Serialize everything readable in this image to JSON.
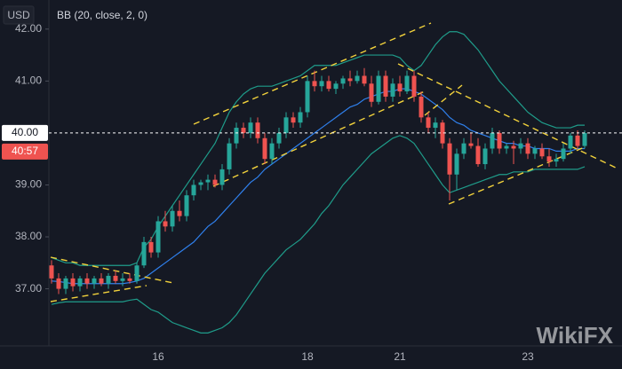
{
  "chart_data": {
    "type": "candlestick",
    "currency": "USD",
    "indicator": "BB (20, close, 2, 0)",
    "categories": [
      null,
      null,
      null,
      null,
      null,
      null,
      null,
      null,
      null,
      null,
      null,
      null,
      null,
      null,
      null,
      "16",
      null,
      null,
      null,
      null,
      null,
      null,
      null,
      null,
      null,
      null,
      null,
      null,
      null,
      null,
      null,
      null,
      null,
      null,
      null,
      null,
      "18",
      null,
      null,
      null,
      null,
      null,
      null,
      null,
      null,
      null,
      null,
      null,
      null,
      "21",
      null,
      null,
      null,
      null,
      null,
      null,
      null,
      null,
      null,
      null,
      null,
      null,
      null,
      null,
      null,
      null,
      null,
      "23",
      null,
      null,
      null,
      null,
      null,
      null,
      null,
      null
    ],
    "open": [
      37.45,
      37.2,
      37.0,
      37.2,
      37.05,
      37.2,
      37.1,
      37.2,
      37.1,
      37.25,
      37.15,
      37.2,
      37.15,
      37.45,
      37.9,
      37.7,
      38.3,
      38.2,
      38.5,
      38.4,
      38.8,
      39.0,
      39.05,
      39.1,
      39.0,
      39.3,
      39.8,
      40.1,
      40.0,
      40.2,
      39.9,
      39.5,
      39.8,
      40.0,
      40.3,
      40.2,
      40.4,
      41.0,
      40.9,
      41.0,
      40.85,
      40.95,
      41.05,
      41.0,
      41.1,
      40.95,
      40.6,
      41.1,
      40.7,
      40.95,
      40.8,
      41.1,
      40.7,
      40.3,
      40.1,
      40.2,
      39.8,
      39.2,
      39.6,
      39.8,
      39.75,
      39.4,
      39.7,
      40.0,
      39.7,
      39.75,
      39.7,
      39.8,
      39.6,
      39.7,
      39.55,
      39.45,
      39.5,
      39.7,
      39.95,
      39.75
    ],
    "high": [
      37.55,
      37.3,
      37.25,
      37.3,
      37.25,
      37.3,
      37.25,
      37.3,
      37.3,
      37.35,
      37.3,
      37.3,
      37.5,
      38.0,
      38.0,
      38.4,
      38.5,
      38.6,
      38.7,
      38.9,
      39.1,
      39.1,
      39.2,
      39.2,
      39.4,
      39.9,
      40.2,
      40.2,
      40.3,
      40.3,
      40.0,
      39.9,
      40.1,
      40.4,
      40.4,
      40.5,
      41.1,
      41.2,
      41.1,
      41.1,
      41.0,
      41.1,
      41.2,
      41.2,
      41.25,
      41.1,
      41.2,
      41.2,
      41.05,
      41.1,
      41.2,
      41.2,
      40.8,
      40.4,
      40.3,
      40.25,
      39.9,
      39.7,
      39.9,
      40.0,
      39.9,
      39.8,
      40.1,
      40.05,
      39.8,
      39.85,
      39.9,
      39.9,
      39.75,
      39.8,
      39.7,
      39.6,
      39.8,
      40.0,
      40.05,
      40.05
    ],
    "low": [
      37.1,
      36.9,
      36.9,
      36.95,
      36.95,
      37.0,
      37.0,
      37.05,
      37.0,
      37.1,
      37.05,
      37.1,
      37.1,
      37.4,
      37.6,
      37.6,
      38.1,
      38.1,
      38.3,
      38.3,
      38.7,
      38.9,
      38.9,
      38.95,
      38.9,
      39.2,
      39.7,
      39.9,
      39.9,
      39.8,
      39.4,
      39.4,
      39.7,
      39.9,
      40.1,
      40.1,
      40.3,
      40.8,
      40.8,
      40.8,
      40.75,
      40.85,
      40.9,
      40.95,
      40.9,
      40.5,
      40.55,
      40.6,
      40.6,
      40.7,
      40.75,
      40.6,
      40.2,
      40.0,
      39.9,
      39.7,
      38.7,
      38.9,
      39.5,
      39.7,
      39.35,
      39.3,
      39.6,
      39.6,
      39.6,
      39.4,
      39.6,
      39.5,
      39.5,
      39.5,
      39.35,
      39.35,
      39.45,
      39.6,
      39.7,
      39.7
    ],
    "close": [
      37.2,
      37.0,
      37.2,
      37.05,
      37.2,
      37.1,
      37.2,
      37.1,
      37.25,
      37.15,
      37.2,
      37.15,
      37.45,
      37.9,
      37.7,
      38.3,
      38.2,
      38.5,
      38.4,
      38.8,
      39.0,
      39.05,
      39.1,
      39.0,
      39.3,
      39.8,
      40.1,
      40.0,
      40.2,
      39.9,
      39.5,
      39.8,
      40.0,
      40.3,
      40.2,
      40.4,
      41.0,
      40.9,
      41.0,
      40.85,
      40.95,
      41.05,
      41.0,
      41.1,
      40.95,
      40.6,
      41.1,
      40.7,
      40.95,
      40.8,
      41.1,
      40.7,
      40.3,
      40.1,
      40.2,
      39.8,
      39.2,
      39.6,
      39.8,
      39.75,
      39.4,
      39.7,
      40.0,
      39.7,
      39.75,
      39.7,
      39.8,
      39.6,
      39.7,
      39.55,
      39.45,
      39.5,
      39.7,
      39.95,
      39.75,
      40.0
    ],
    "up_color": "#26a69a",
    "down_color": "#ef5350",
    "bands": {
      "upper": {
        "color": "#1f9c8a",
        "values": [
          37.6,
          37.55,
          37.5,
          37.5,
          37.45,
          37.45,
          37.45,
          37.45,
          37.45,
          37.45,
          37.45,
          37.45,
          37.5,
          37.8,
          37.95,
          38.2,
          38.4,
          38.6,
          38.8,
          39.0,
          39.2,
          39.4,
          39.6,
          39.8,
          40.1,
          40.4,
          40.6,
          40.75,
          40.85,
          40.9,
          40.9,
          40.9,
          40.95,
          41.0,
          41.05,
          41.1,
          41.2,
          41.3,
          41.3,
          41.3,
          41.3,
          41.35,
          41.4,
          41.45,
          41.5,
          41.5,
          41.5,
          41.5,
          41.5,
          41.45,
          41.3,
          41.2,
          41.3,
          41.5,
          41.7,
          41.85,
          41.95,
          41.95,
          41.9,
          41.75,
          41.6,
          41.4,
          41.2,
          41.0,
          40.85,
          40.7,
          40.55,
          40.4,
          40.3,
          40.2,
          40.15,
          40.1,
          40.1,
          40.1,
          40.15,
          40.15
        ]
      },
      "basis": {
        "color": "#2f80ed",
        "values": [
          37.15,
          37.14,
          37.12,
          37.1,
          37.1,
          37.1,
          37.1,
          37.1,
          37.1,
          37.1,
          37.1,
          37.12,
          37.15,
          37.2,
          37.3,
          37.4,
          37.5,
          37.6,
          37.7,
          37.8,
          37.9,
          38.05,
          38.2,
          38.3,
          38.45,
          38.6,
          38.75,
          38.9,
          39.05,
          39.15,
          39.3,
          39.4,
          39.5,
          39.6,
          39.7,
          39.8,
          39.9,
          40.0,
          40.1,
          40.2,
          40.3,
          40.4,
          40.5,
          40.55,
          40.65,
          40.7,
          40.75,
          40.8,
          40.8,
          40.85,
          40.85,
          40.8,
          40.75,
          40.65,
          40.55,
          40.45,
          40.3,
          40.2,
          40.15,
          40.05,
          40.0,
          39.95,
          39.9,
          39.85,
          39.8,
          39.8,
          39.75,
          39.75,
          39.7,
          39.7,
          39.7,
          39.65,
          39.65,
          39.65,
          39.7,
          39.7
        ]
      },
      "lower": {
        "color": "#1f9c8a",
        "values": [
          36.7,
          36.73,
          36.75,
          36.75,
          36.75,
          36.75,
          36.75,
          36.75,
          36.75,
          36.75,
          36.75,
          36.78,
          36.8,
          36.7,
          36.6,
          36.55,
          36.45,
          36.35,
          36.3,
          36.25,
          36.2,
          36.15,
          36.15,
          36.2,
          36.25,
          36.35,
          36.5,
          36.7,
          36.9,
          37.1,
          37.3,
          37.45,
          37.6,
          37.75,
          37.85,
          37.95,
          38.1,
          38.25,
          38.45,
          38.6,
          38.8,
          39.0,
          39.15,
          39.3,
          39.45,
          39.6,
          39.7,
          39.8,
          39.9,
          39.95,
          39.9,
          39.8,
          39.6,
          39.4,
          39.2,
          39.0,
          38.85,
          38.9,
          38.95,
          39.0,
          39.05,
          39.1,
          39.15,
          39.2,
          39.2,
          39.25,
          39.25,
          39.25,
          39.3,
          39.3,
          39.3,
          39.3,
          39.3,
          39.3,
          39.3,
          39.35
        ]
      }
    },
    "ylim": [
      35.9,
      42.56
    ],
    "yticks": [
      {
        "value": 37,
        "label": "37.00"
      },
      {
        "value": 38,
        "label": "38.00"
      },
      {
        "value": 39,
        "label": "39.00"
      },
      {
        "value": 41,
        "label": "41.00"
      },
      {
        "value": 42,
        "label": "42.00"
      }
    ],
    "grid": false,
    "price_label": {
      "value": 40,
      "label": "40.00"
    },
    "countdown": "40:57",
    "watermark": "WikiFX"
  }
}
